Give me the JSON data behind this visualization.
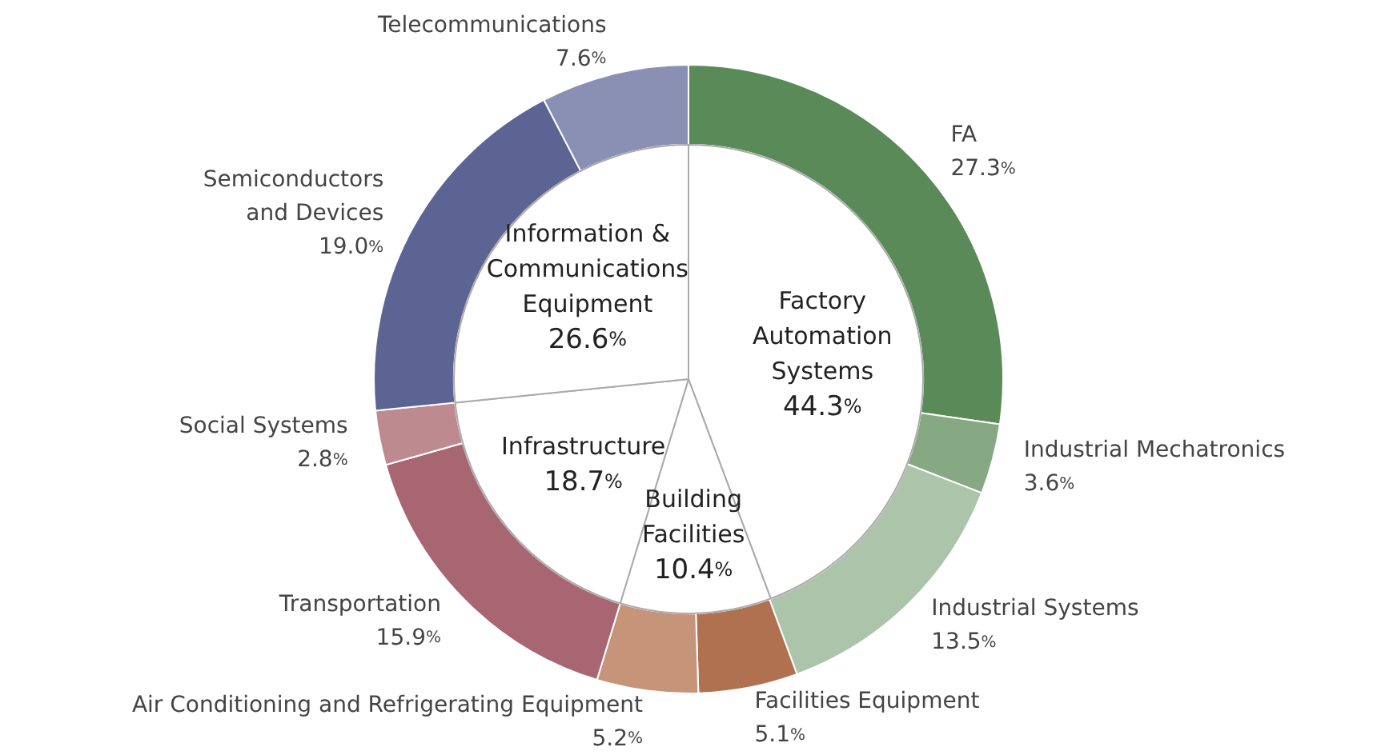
{
  "chart_data": [
    {
      "type": "donut",
      "categories": [
        "FA",
        "Industrial Mechatronics",
        "Industrial Systems",
        "Facilities Equipment",
        "Air Conditioning and Refrigerating Equipment",
        "Transportation",
        "Social Systems",
        "Semiconductors\nand Devices",
        "Telecommunications"
      ],
      "values": [
        27.3,
        3.6,
        13.5,
        5.1,
        5.2,
        15.9,
        2.8,
        19.0,
        7.6
      ],
      "colors": [
        "#5a8a58",
        "#86a882",
        "#abc4aa",
        "#b07150",
        "#c59479",
        "#a86672",
        "#bd8a8f",
        "#5c6494",
        "#8a90b4"
      ],
      "value_labels": [
        "27.3%",
        "3.6%",
        "13.5%",
        "5.1%",
        "5.2%",
        "15.9%",
        "2.8%",
        "19.0%",
        "7.6%"
      ]
    },
    {
      "type": "pie",
      "categories": [
        "Factory\nAutomation\nSystems",
        "Building\nFacilities",
        "Infrastructure",
        "Information &\nCommunications\nEquipment"
      ],
      "values": [
        44.3,
        10.4,
        18.7,
        26.6
      ],
      "colors": [
        "#ffffff",
        "#ffffff",
        "#ffffff",
        "#ffffff"
      ],
      "value_labels": [
        "44.3%",
        "10.4%",
        "18.7%",
        "26.6%"
      ]
    }
  ]
}
